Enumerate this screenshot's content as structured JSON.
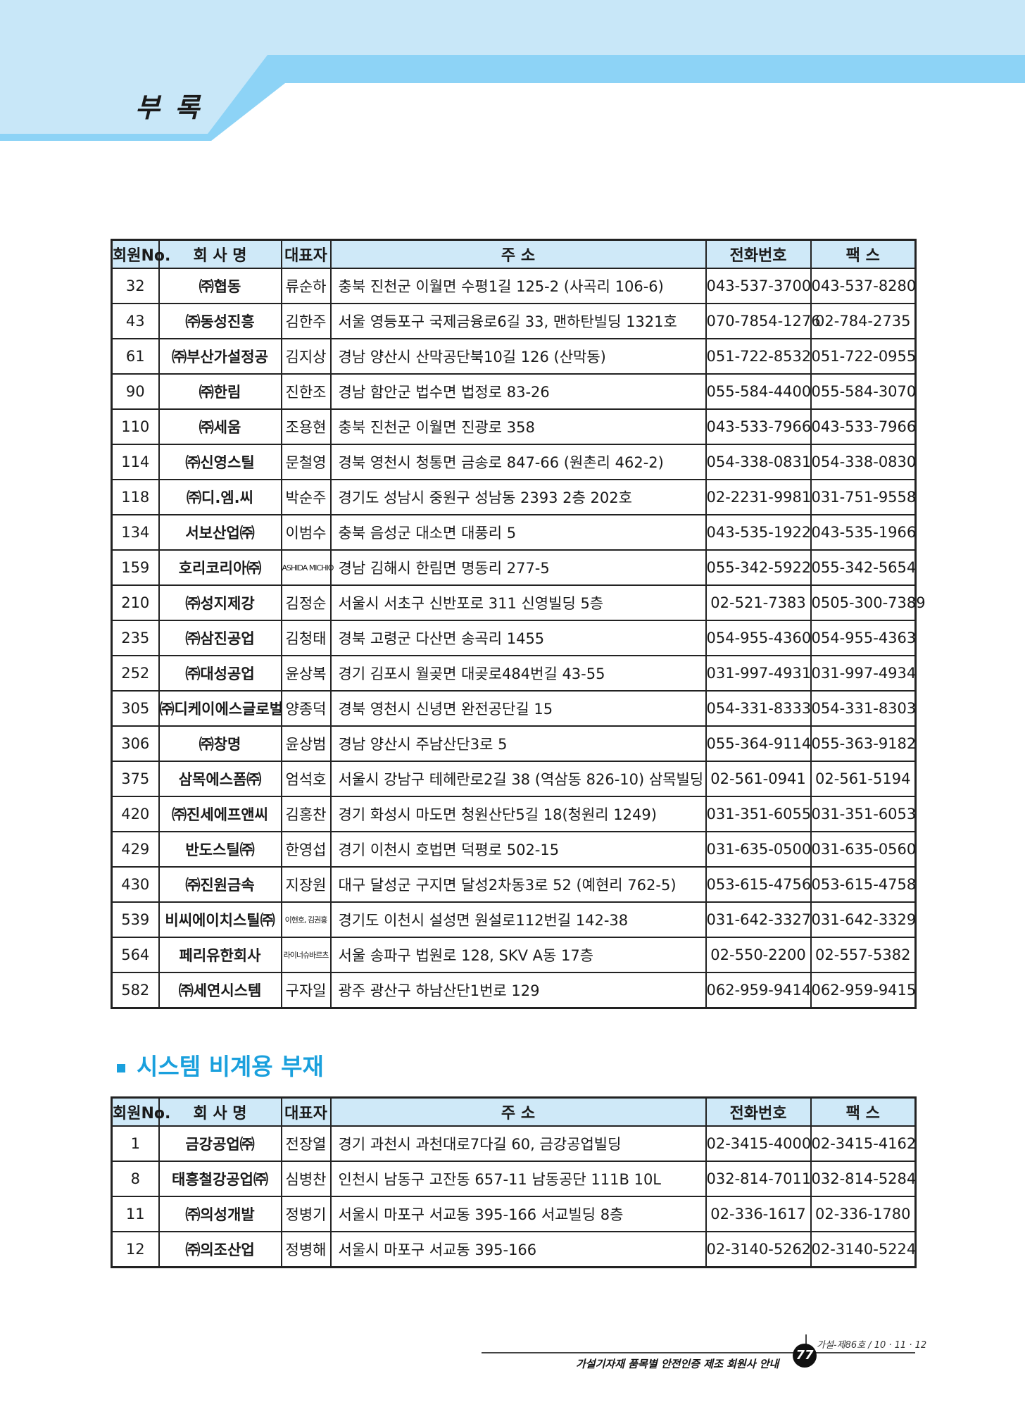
{
  "page": {
    "appendix_title": "부 록",
    "section_title": "시스템 비계용 부재",
    "footer_caption": "가설기자재 품목별 안전인증 제조 회원사 안내",
    "page_number": "77",
    "issue": "가설-제86호 / 10 · 11 · 12",
    "colors": {
      "banner_light": "#c8e7f8",
      "banner_blue": "#8dd3f6",
      "header_fill": "#cfe9f8",
      "section_title": "#1aa0dd"
    }
  },
  "columns": [
    "회원No.",
    "회 사 명",
    "대표자",
    "주 소",
    "전화번호",
    "팩 스"
  ],
  "table1": [
    [
      "32",
      "㈜협동",
      "류순하",
      "충북 진천군 이월면 수평1길 125-2 (사곡리 106-6)",
      "043-537-3700",
      "043-537-8280"
    ],
    [
      "43",
      "㈜동성진흥",
      "김한주",
      "서울 영등포구 국제금융로6길 33, 맨하탄빌딩 1321호",
      "070-7854-1276",
      "02-784-2735"
    ],
    [
      "61",
      "㈜부산가설정공",
      "김지상",
      "경남 양산시 산막공단북10길 126 (산막동)",
      "051-722-8532",
      "051-722-0955"
    ],
    [
      "90",
      "㈜한림",
      "진한조",
      "경남 함안군 법수면 법정로 83-26",
      "055-584-4400",
      "055-584-3070"
    ],
    [
      "110",
      "㈜세움",
      "조용현",
      "충북 진천군 이월면 진광로 358",
      "043-533-7966",
      "043-533-7966"
    ],
    [
      "114",
      "㈜신영스틸",
      "문철영",
      "경북 영천시 청통면 금송로 847-66 (원촌리 462-2)",
      "054-338-0831",
      "054-338-0830"
    ],
    [
      "118",
      "㈜디.엠.씨",
      "박순주",
      "경기도 성남시 중원구 성남동 2393 2층 202호",
      "02-2231-9981",
      "031-751-9558"
    ],
    [
      "134",
      "서보산업㈜",
      "이범수",
      "충북 음성군 대소면 대풍리 5",
      "043-535-1922",
      "043-535-1966"
    ],
    [
      "159",
      "호리코리아㈜",
      "ASHIDA MICHIO",
      "경남 김해시 한림면 명동리 277-5",
      "055-342-5922",
      "055-342-5654"
    ],
    [
      "210",
      "㈜성지제강",
      "김정순",
      "서울시 서초구 신반포로 311 신영빌딩 5층",
      "02-521-7383",
      "0505-300-7389"
    ],
    [
      "235",
      "㈜삼진공업",
      "김청태",
      "경북 고령군 다산면 송곡리 1455",
      "054-955-4360",
      "054-955-4363"
    ],
    [
      "252",
      "㈜대성공업",
      "윤상복",
      "경기 김포시 월곶면 대곶로484번길 43-55",
      "031-997-4931",
      "031-997-4934"
    ],
    [
      "305",
      "㈜디케이에스글로벌",
      "양종덕",
      "경북 영천시 신녕면 완전공단길 15",
      "054-331-8333",
      "054-331-8303"
    ],
    [
      "306",
      "㈜창명",
      "윤상범",
      "경남 양산시 주남산단3로 5",
      "055-364-9114",
      "055-363-9182"
    ],
    [
      "375",
      "삼목에스폼㈜",
      "엄석호",
      "서울시 강남구 테헤란로2길 38 (역삼동 826-10) 삼목빌딩",
      "02-561-0941",
      "02-561-5194"
    ],
    [
      "420",
      "㈜진세에프앤씨",
      "김홍찬",
      "경기 화성시 마도면 청원산단5길 18(청원리 1249)",
      "031-351-6055",
      "031-351-6053"
    ],
    [
      "429",
      "반도스틸㈜",
      "한영섭",
      "경기 이천시 호법면 덕평로 502-15",
      "031-635-0500",
      "031-635-0560"
    ],
    [
      "430",
      "㈜진원금속",
      "지장원",
      "대구 달성군 구지면 달성2차동3로 52 (예현리 762-5)",
      "053-615-4756",
      "053-615-4758"
    ],
    [
      "539",
      "비씨에이치스틸㈜",
      "이현호, 김권홍",
      "경기도 이천시 설성면 원설로112번길 142-38",
      "031-642-3327",
      "031-642-3329"
    ],
    [
      "564",
      "페리유한회사",
      "라이너슈바르츠",
      "서울 송파구 법원로 128, SKV A동 17층",
      "02-550-2200",
      "02-557-5382"
    ],
    [
      "582",
      "㈜세연시스템",
      "구자일",
      "광주 광산구 하남산단1번로 129",
      "062-959-9414",
      "062-959-9415"
    ]
  ],
  "table2": [
    [
      "1",
      "금강공업㈜",
      "전장열",
      "경기 과천시 과천대로7다길 60, 금강공업빌딩",
      "02-3415-4000",
      "02-3415-4162"
    ],
    [
      "8",
      "태흥철강공업㈜",
      "심병찬",
      "인천시 남동구 고잔동 657-11 남동공단 111B 10L",
      "032-814-7011",
      "032-814-5284"
    ],
    [
      "11",
      "㈜의성개발",
      "정병기",
      "서울시 마포구 서교동 395-166 서교빌딩 8층",
      "02-336-1617",
      "02-336-1780"
    ],
    [
      "12",
      "㈜의조산업",
      "정병해",
      "서울시 마포구 서교동 395-166",
      "02-3140-5262",
      "02-3140-5224"
    ]
  ]
}
